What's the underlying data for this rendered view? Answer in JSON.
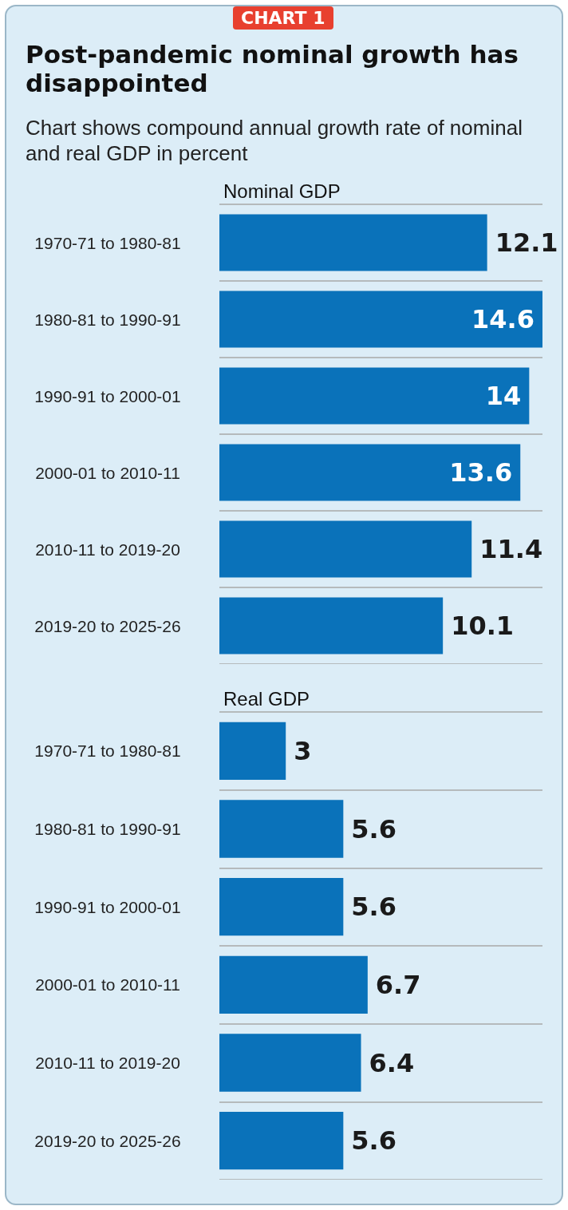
{
  "chart_data": [
    {
      "type": "bar",
      "orientation": "horizontal",
      "title": "Post-pandemic nominal growth has disappointed",
      "subtitle": "Chart shows compound annual growth rate of nominal and real GDP in percent",
      "annotations": [
        "CHART 1"
      ],
      "xlabel": "Nominal GDP",
      "categories": [
        "1970-71 to 1980-81",
        "1980-81 to 1990-91",
        "1990-91 to 2000-01",
        "2000-01 to 2010-11",
        "2010-11 to 2019-20",
        "2019-20 to 2025-26"
      ],
      "values": [
        12.1,
        14.6,
        14,
        13.6,
        11.4,
        10.1
      ],
      "color": "#0a72ba",
      "data_labels": true,
      "grid": "y"
    },
    {
      "type": "bar",
      "orientation": "horizontal",
      "xlabel": "Real GDP",
      "categories": [
        "1970-71 to 1980-81",
        "1980-81 to 1990-91",
        "1990-91 to 2000-01",
        "2000-01 to 2010-11",
        "2010-11 to 2019-20",
        "2019-20 to 2025-26"
      ],
      "values": [
        3,
        5.6,
        5.6,
        6.7,
        6.4,
        5.6
      ],
      "color": "#0a72ba",
      "data_labels": true,
      "grid": "y"
    }
  ]
}
